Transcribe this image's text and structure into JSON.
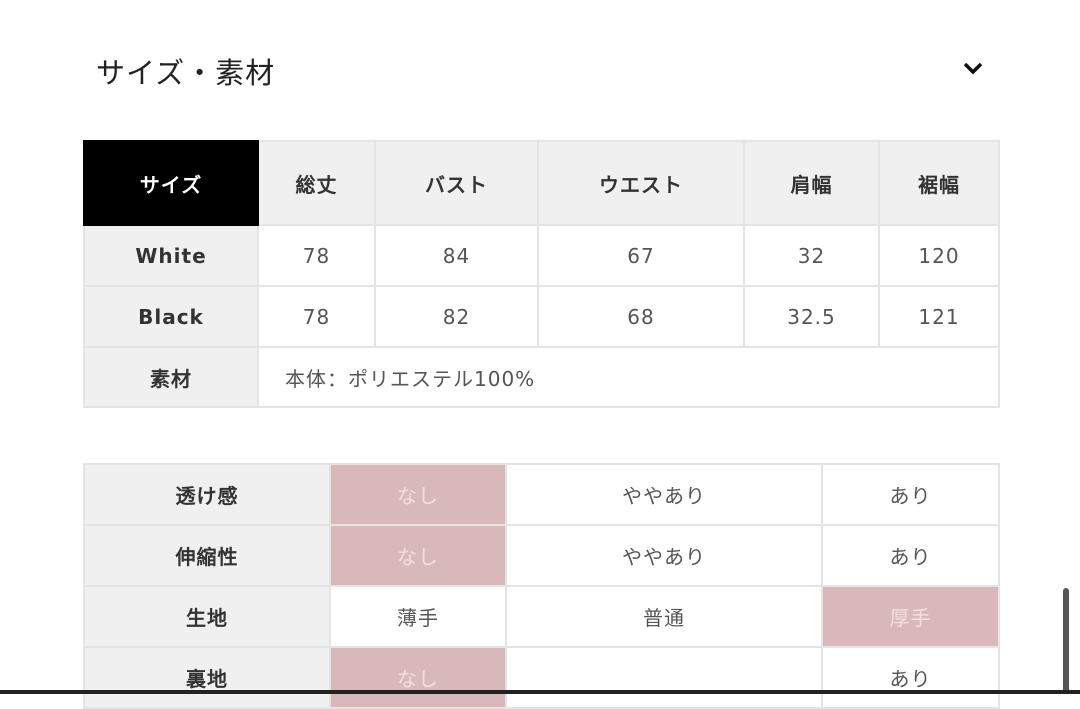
{
  "section": {
    "title": "サイズ・素材",
    "toggle_icon": "chevron-down-icon"
  },
  "size_table": {
    "headers": [
      "サイズ",
      "総丈",
      "バスト",
      "ウエスト",
      "肩幅",
      "裾幅"
    ],
    "rows": [
      {
        "label": "White",
        "values": [
          "78",
          "84",
          "67",
          "32",
          "120"
        ]
      },
      {
        "label": "Black",
        "values": [
          "78",
          "82",
          "68",
          "32.5",
          "121"
        ]
      }
    ],
    "material_label": "素材",
    "material_value": "本体：ポリエステル100%"
  },
  "attributes_table": {
    "highlight_color": "#d9b8b9",
    "rows": [
      {
        "label": "透け感",
        "options": [
          "なし",
          "ややあり",
          "あり"
        ],
        "selected": 0
      },
      {
        "label": "伸縮性",
        "options": [
          "なし",
          "ややあり",
          "あり"
        ],
        "selected": 0
      },
      {
        "label": "生地",
        "options": [
          "薄手",
          "普通",
          "厚手"
        ],
        "selected": 2
      },
      {
        "label": "裏地",
        "options": [
          "なし",
          "",
          "あり"
        ],
        "selected": 0
      }
    ]
  }
}
